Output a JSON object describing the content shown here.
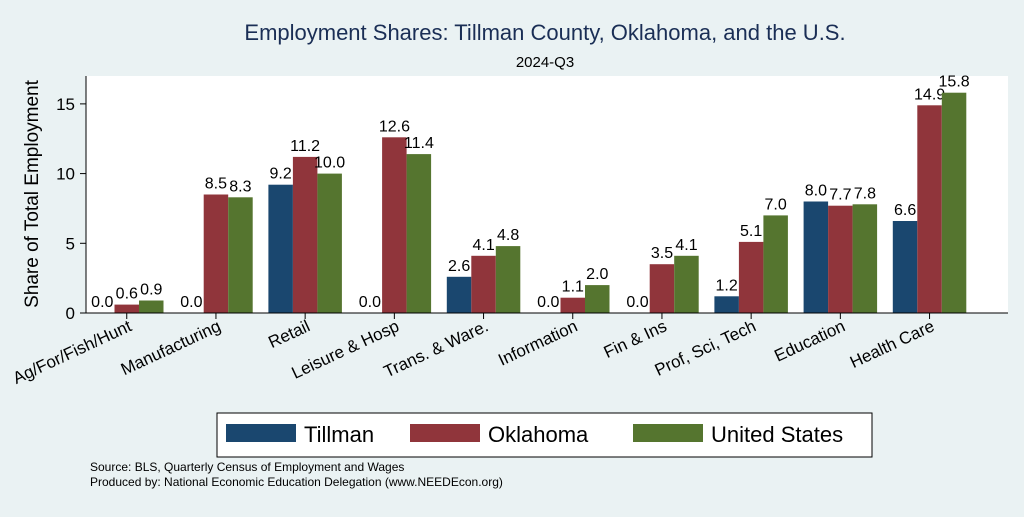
{
  "chart_data": {
    "type": "bar",
    "title": "Employment Shares: Tillman County, Oklahoma, and the U.S.",
    "subtitle": "2024-Q3",
    "xlabel": "",
    "ylabel": "Share of Total Employment",
    "ylim": [
      0,
      17
    ],
    "yticks": [
      0,
      5,
      10,
      15
    ],
    "grid": false,
    "legend_position": "bottom",
    "categories": [
      "Ag/For/Fish/Hunt",
      "Manufacturing",
      "Retail",
      "Leisure & Hosp",
      "Trans. & Ware.",
      "Information",
      "Fin & Ins",
      "Prof, Sci, Tech",
      "Education",
      "Health Care"
    ],
    "series": [
      {
        "name": "Tillman",
        "color": "#1a476f",
        "values": [
          0.0,
          0.0,
          9.2,
          0.0,
          2.6,
          0.0,
          0.0,
          1.2,
          8.0,
          6.6
        ]
      },
      {
        "name": "Oklahoma",
        "color": "#90353b",
        "values": [
          0.6,
          8.5,
          11.2,
          12.6,
          4.1,
          1.1,
          3.5,
          5.1,
          7.7,
          14.9
        ]
      },
      {
        "name": "United States",
        "color": "#55752f",
        "values": [
          0.9,
          8.3,
          10.0,
          11.4,
          4.8,
          2.0,
          4.1,
          7.0,
          7.8,
          15.8
        ]
      }
    ]
  },
  "footer": {
    "source": "Source: BLS, Quarterly Census of Employment and Wages",
    "produced": "Produced by: National Economic Education Delegation (www.NEEDEcon.org)"
  }
}
